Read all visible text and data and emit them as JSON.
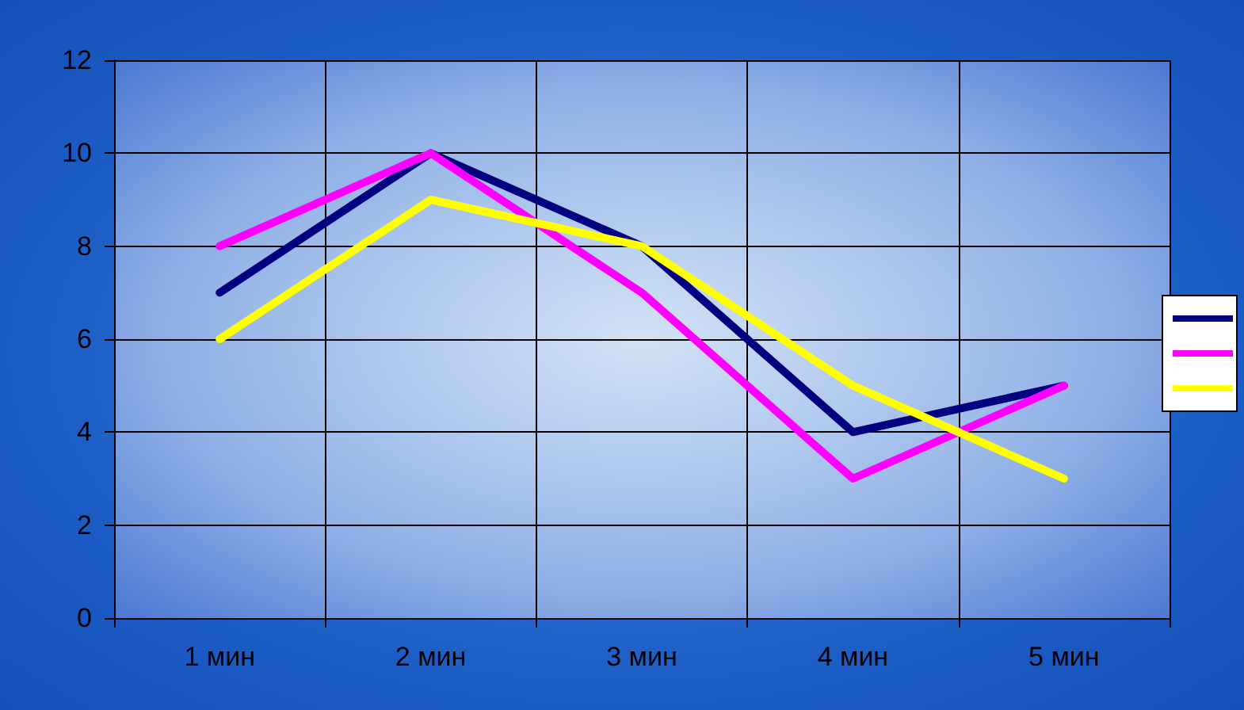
{
  "chart_data": {
    "type": "line",
    "categories": [
      "1 мин",
      "2 мин",
      "3 мин",
      "4 мин",
      "5 мин"
    ],
    "series": [
      {
        "color": "#000080",
        "values": [
          7,
          10,
          8,
          4,
          5
        ]
      },
      {
        "color": "#ff00ff",
        "values": [
          8,
          10,
          7,
          3,
          5
        ]
      },
      {
        "color": "#ffff00",
        "values": [
          6,
          9,
          8,
          5,
          3
        ]
      }
    ],
    "ylim": [
      0,
      12
    ],
    "yticks": [
      0,
      2,
      4,
      6,
      8,
      10,
      12
    ],
    "grid": true,
    "marker": "none",
    "line_style": "solid"
  }
}
